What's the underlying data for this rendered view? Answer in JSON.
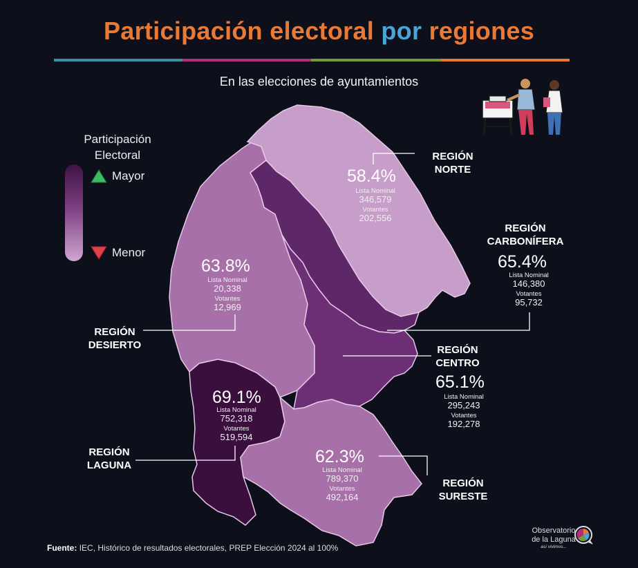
{
  "title": {
    "part1": "Participación electoral",
    "part2": "por",
    "part3": "regiones"
  },
  "subtitle": "En las elecciones de ayuntamientos",
  "colors": {
    "bar1": "#3a8fa0",
    "bar2": "#b52c7c",
    "bar3": "#7a9a3a",
    "bar4": "#e87a35"
  },
  "legend": {
    "title_line1": "Participación",
    "title_line2": "Electoral",
    "high": "Mayor",
    "low": "Menor"
  },
  "labels": {
    "lista_nominal": "Lista Nominal",
    "votantes": "Votantes"
  },
  "regions": {
    "norte": {
      "name1": "REGIÓN",
      "name2": "NORTE",
      "pct": "58.4%",
      "lista": "346,579",
      "votantes": "202,556",
      "participation": 58.4
    },
    "carbonifera": {
      "name1": "REGIÓN",
      "name2": "CARBONÍFERA",
      "pct": "65.4%",
      "lista": "146,380",
      "votantes": "95,732",
      "participation": 65.4
    },
    "desierto": {
      "name1": "REGIÓN",
      "name2": "DESIERTO",
      "pct": "63.8%",
      "lista": "20,338",
      "votantes": "12,969",
      "participation": 63.8
    },
    "centro": {
      "name1": "REGIÓN",
      "name2": "CENTRO",
      "pct": "65.1%",
      "lista": "295,243",
      "votantes": "192,278",
      "participation": 65.1
    },
    "laguna": {
      "name1": "REGIÓN",
      "name2": "LAGUNA",
      "pct": "69.1%",
      "lista": "752,318",
      "votantes": "519,594",
      "participation": 69.1
    },
    "sureste": {
      "name1": "REGIÓN",
      "name2": "SURESTE",
      "pct": "62.3%",
      "lista": "789,370",
      "votantes": "492,164",
      "participation": 62.3
    }
  },
  "source": {
    "label": "Fuente:",
    "text": "IEC, Histórico de resultados electorales, PREP Elección 2024 al 100%"
  },
  "logo": {
    "line1": "Observatorio",
    "line2": "de la Laguna",
    "line3": "así vivimos..."
  }
}
